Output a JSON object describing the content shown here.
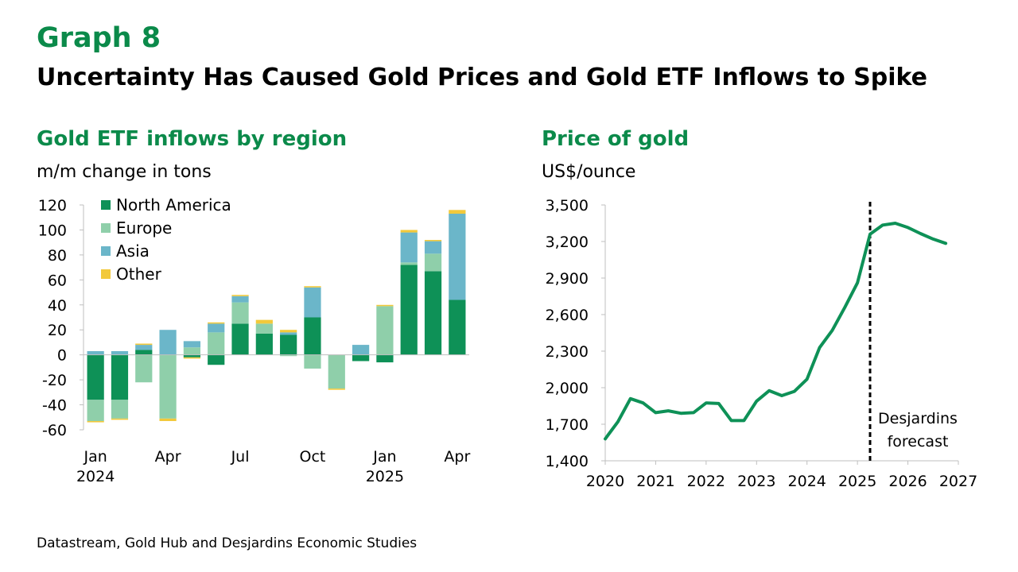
{
  "header": {
    "label": "Graph 8",
    "title": "Uncertainty Has Caused Gold Prices and Gold ETF Inflows to Spike"
  },
  "colors": {
    "title_green": "#0b8a4a",
    "north_america": "#0e9157",
    "europe": "#8fcfaa",
    "asia": "#6bb6c9",
    "other": "#f2c93b",
    "price_line": "#0e9157"
  },
  "source": "Datastream, Gold Hub and Desjardins Economic Studies",
  "chart_data": [
    {
      "type": "bar",
      "stacked": true,
      "title": "Gold ETF inflows by region",
      "ylabel": "m/m change in tons",
      "ylim": [
        -60,
        120
      ],
      "yticks": [
        -60,
        -40,
        -20,
        0,
        20,
        40,
        60,
        80,
        100,
        120
      ],
      "categories": [
        "Jan 2024",
        "Feb 2024",
        "Mar 2024",
        "Apr 2024",
        "May 2024",
        "Jun 2024",
        "Jul 2024",
        "Aug 2024",
        "Sep 2024",
        "Oct 2024",
        "Nov 2024",
        "Dec 2024",
        "Jan 2025",
        "Feb 2025",
        "Mar 2025",
        "Apr 2025"
      ],
      "xtick_labels": [
        {
          "index": 0,
          "lines": [
            "Jan",
            "2024"
          ]
        },
        {
          "index": 3,
          "lines": [
            "Apr"
          ]
        },
        {
          "index": 6,
          "lines": [
            "Jul"
          ]
        },
        {
          "index": 9,
          "lines": [
            "Oct"
          ]
        },
        {
          "index": 12,
          "lines": [
            "Jan",
            "2025"
          ]
        },
        {
          "index": 15,
          "lines": [
            "Apr"
          ]
        }
      ],
      "legend_position": "top-left",
      "series": [
        {
          "name": "North America",
          "values": [
            -36,
            -36,
            4,
            0,
            -2,
            -8,
            25,
            17,
            16,
            30,
            0,
            -5,
            -6,
            72,
            67,
            44
          ]
        },
        {
          "name": "Europe",
          "values": [
            -17,
            -15,
            -22,
            -51,
            6,
            18,
            17,
            8,
            -1,
            -11,
            -27,
            0,
            39,
            2,
            14,
            0
          ]
        },
        {
          "name": "Asia",
          "values": [
            3,
            3,
            4,
            20,
            5,
            7,
            5,
            0,
            2,
            24,
            0,
            8,
            0,
            24,
            10,
            69
          ]
        },
        {
          "name": "Other",
          "values": [
            -1,
            -1,
            1,
            -2,
            -1,
            1,
            1,
            3,
            2,
            1,
            -1,
            0,
            1,
            2,
            1,
            3
          ]
        }
      ]
    },
    {
      "type": "line",
      "title": "Price of gold",
      "ylabel": "US$/ounce",
      "ylim": [
        1400,
        3500
      ],
      "yticks": [
        1400,
        1700,
        2000,
        2300,
        2600,
        2900,
        3200,
        3500
      ],
      "ytick_labels": [
        "1,400",
        "1,700",
        "2,000",
        "2,300",
        "2,600",
        "2,900",
        "3,200",
        "3,500"
      ],
      "xlim": [
        2020,
        2027
      ],
      "xticks": [
        2020,
        2021,
        2022,
        2023,
        2024,
        2025,
        2026,
        2027
      ],
      "series": [
        {
          "x": [
            2020.0,
            2020.25,
            2020.5,
            2020.75,
            2021.0,
            2021.25,
            2021.5,
            2021.75,
            2022.0,
            2022.25,
            2022.5,
            2022.75,
            2023.0,
            2023.25,
            2023.5,
            2023.75,
            2024.0,
            2024.25,
            2024.5,
            2024.75,
            2025.0,
            2025.25,
            2025.5,
            2025.75,
            2026.0,
            2026.25,
            2026.5,
            2026.75
          ],
          "y": [
            1580,
            1720,
            1910,
            1875,
            1795,
            1810,
            1790,
            1795,
            1875,
            1870,
            1730,
            1730,
            1890,
            1975,
            1935,
            1970,
            2070,
            2330,
            2470,
            2660,
            2860,
            3260,
            3335,
            3350,
            3315,
            3265,
            3220,
            3185
          ]
        }
      ],
      "forecast_start": 2025.25,
      "annotation": [
        "Desjardins",
        "forecast"
      ]
    }
  ]
}
